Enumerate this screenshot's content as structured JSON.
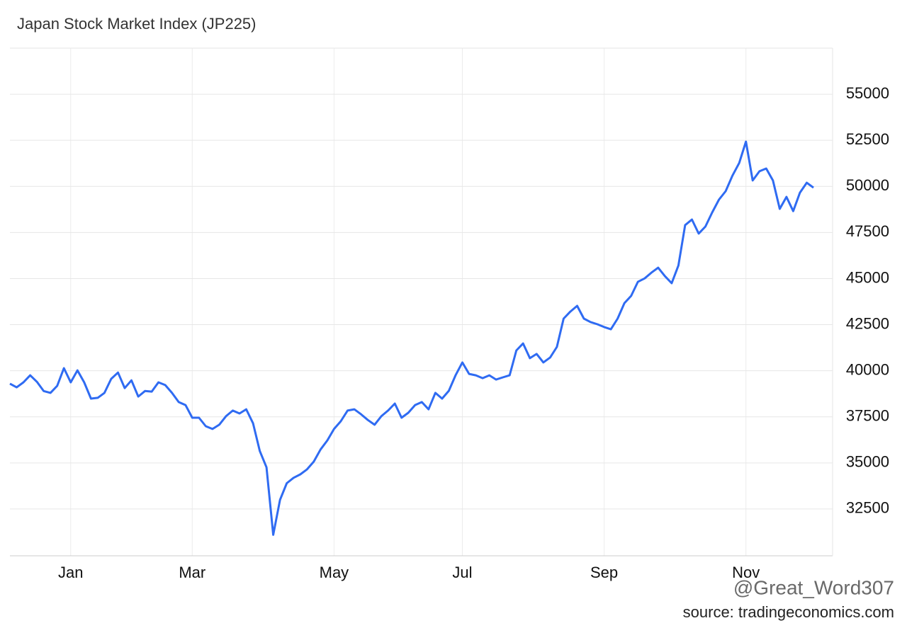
{
  "chart_data": {
    "type": "line",
    "title": "Japan Stock Market Index (JP225)",
    "categories": [
      null,
      null,
      null,
      null,
      null,
      null,
      null,
      null,
      null,
      "Jan",
      null,
      null,
      null,
      null,
      null,
      null,
      null,
      null,
      null,
      null,
      null,
      null,
      null,
      null,
      null,
      null,
      null,
      "Mar",
      null,
      null,
      null,
      null,
      null,
      null,
      null,
      null,
      null,
      null,
      null,
      null,
      null,
      null,
      null,
      null,
      null,
      null,
      null,
      null,
      "May",
      null,
      null,
      null,
      null,
      null,
      null,
      null,
      null,
      null,
      null,
      null,
      null,
      null,
      null,
      null,
      null,
      null,
      null,
      "Jul",
      null,
      null,
      null,
      null,
      null,
      null,
      null,
      null,
      null,
      null,
      null,
      null,
      null,
      null,
      null,
      null,
      null,
      null,
      null,
      null,
      "Sep",
      null,
      null,
      null,
      null,
      null,
      null,
      null,
      null,
      null,
      null,
      null,
      null,
      null,
      null,
      null,
      null,
      null,
      null,
      null,
      null,
      "Nov",
      null,
      null,
      null,
      null,
      null,
      null,
      null,
      null,
      null,
      null
    ],
    "values": [
      39300,
      39100,
      39370,
      39750,
      39400,
      38900,
      38800,
      39180,
      40140,
      39370,
      40020,
      39370,
      38490,
      38530,
      38800,
      39560,
      39900,
      39060,
      39480,
      38600,
      38900,
      38870,
      39370,
      39220,
      38800,
      38300,
      38140,
      37450,
      37450,
      36990,
      36840,
      37070,
      37530,
      37840,
      37680,
      37910,
      37150,
      35650,
      34760,
      31100,
      33000,
      33900,
      34190,
      34380,
      34650,
      35070,
      35730,
      36220,
      36840,
      37260,
      37840,
      37910,
      37640,
      37330,
      37070,
      37530,
      37840,
      38220,
      37450,
      37720,
      38140,
      38300,
      37910,
      38800,
      38490,
      38910,
      39750,
      40450,
      39830,
      39750,
      39600,
      39750,
      39520,
      39640,
      39750,
      41100,
      41480,
      40680,
      40910,
      40450,
      40720,
      41290,
      42830,
      43210,
      43520,
      42830,
      42640,
      42520,
      42370,
      42250,
      42830,
      43670,
      44060,
      44820,
      45010,
      45320,
      45590,
      45130,
      44750,
      45710,
      47900,
      48200,
      47440,
      47820,
      48590,
      49280,
      49740,
      50580,
      51270,
      52430,
      50320,
      50820,
      50970,
      50320,
      48780,
      49430,
      48660,
      49660,
      50200,
      49930
    ],
    "color": "#2f6bf2",
    "ylim": [
      30000,
      57500
    ],
    "yticks": [
      32500,
      35000,
      37500,
      40000,
      42500,
      45000,
      47500,
      50000,
      52500,
      55000
    ],
    "grid": true,
    "watermark": "@Great_Word307",
    "source": "source: tradingeconomics.com"
  }
}
